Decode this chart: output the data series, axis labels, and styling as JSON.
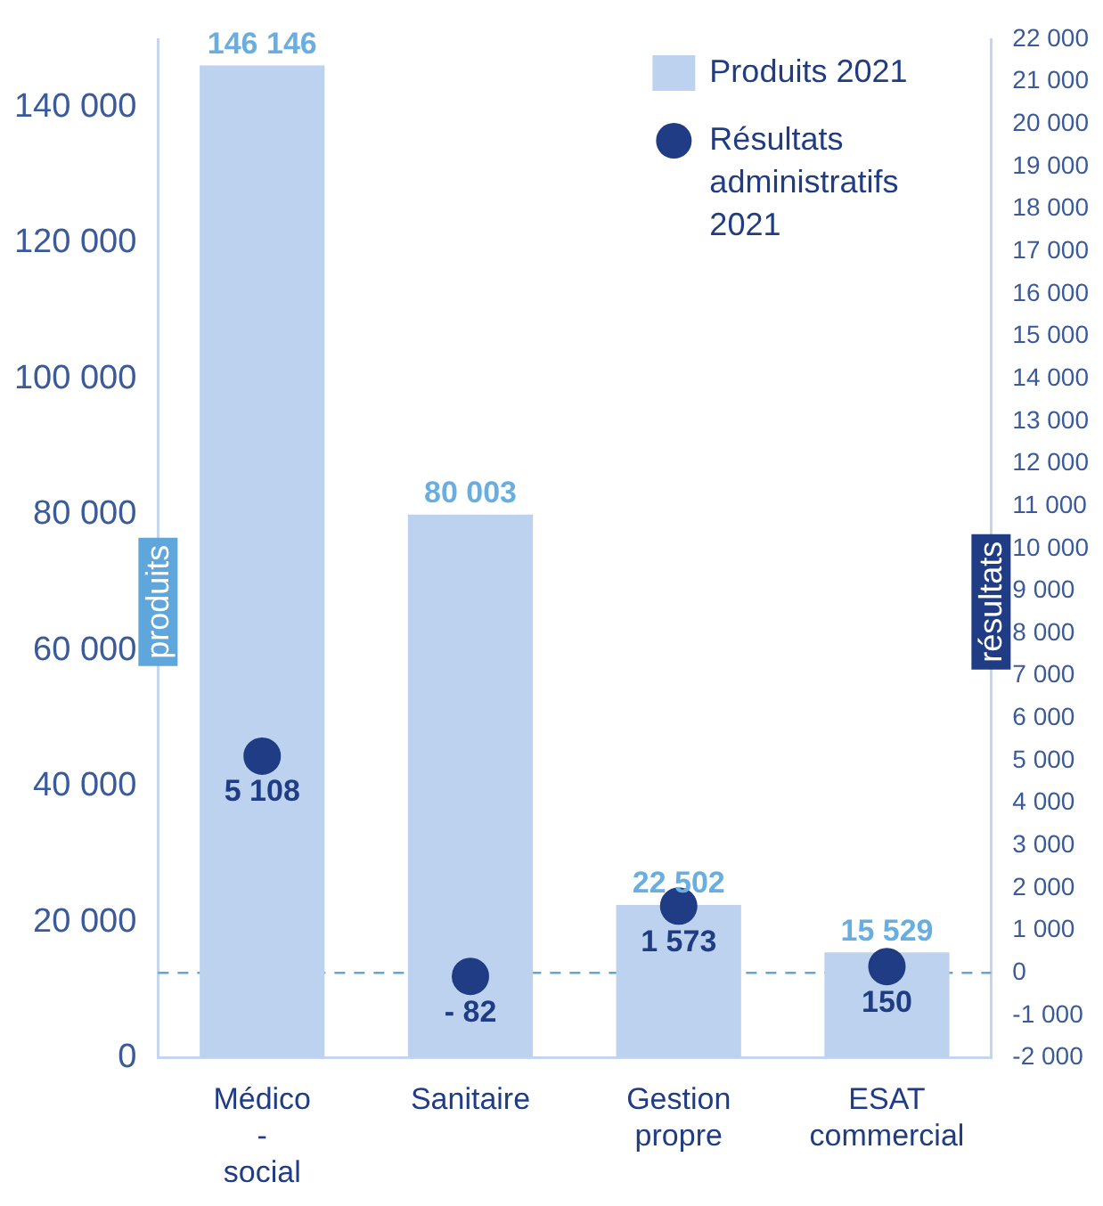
{
  "chart_data": {
    "type": "bar",
    "categories": [
      "Médico - social",
      "Sanitaire",
      "Gestion propre",
      "ESAT commercial"
    ],
    "series": [
      {
        "name": "Produits 2021",
        "color": "#bcd2ee",
        "values": [
          146146,
          80003,
          22502,
          15529
        ],
        "value_labels": [
          "146 146",
          "80 003",
          "22 502",
          "15 529"
        ]
      },
      {
        "name": "Résultats administratifs 2021",
        "type": "scatter",
        "axis": "y2",
        "color": "#1f3c84",
        "values": [
          5108,
          -82,
          1573,
          150
        ],
        "value_labels": [
          "5 108",
          "- 82",
          "1 573",
          "150"
        ]
      }
    ],
    "ylabel": "produits",
    "y2label": "résultats",
    "ylim": [
      0,
      150000
    ],
    "yticks": [
      0,
      {
        "value": 20000,
        "label": "20 000"
      },
      {
        "value": 40000,
        "label": "40 000"
      },
      {
        "value": 60000,
        "label": "60 000"
      },
      {
        "value": 80000,
        "label": "80 000"
      },
      {
        "value": 100000,
        "label": "100 000"
      },
      {
        "value": 120000,
        "label": "120 000"
      },
      {
        "value": 140000,
        "label": "140 000"
      }
    ],
    "y2lim": [
      -2000,
      22000
    ],
    "y2ticks": [
      {
        "value": -2000,
        "label": "-2 000"
      },
      {
        "value": -1000,
        "label": "-1 000"
      },
      0,
      {
        "value": 1000,
        "label": "1 000"
      },
      {
        "value": 2000,
        "label": "2 000"
      },
      {
        "value": 3000,
        "label": "3 000"
      },
      {
        "value": 4000,
        "label": "4 000"
      },
      {
        "value": 5000,
        "label": "5 000"
      },
      {
        "value": 6000,
        "label": "6 000"
      },
      {
        "value": 7000,
        "label": "7 000"
      },
      {
        "value": 8000,
        "label": "8 000"
      },
      {
        "value": 9000,
        "label": "9 000"
      },
      {
        "value": 10000,
        "label": "10 000"
      },
      {
        "value": 11000,
        "label": "11 000"
      },
      {
        "value": 12000,
        "label": "12 000"
      },
      {
        "value": 13000,
        "label": "13 000"
      },
      {
        "value": 14000,
        "label": "14 000"
      },
      {
        "value": 15000,
        "label": "15 000"
      },
      {
        "value": 16000,
        "label": "16 000"
      },
      {
        "value": 17000,
        "label": "17 000"
      },
      {
        "value": 18000,
        "label": "18 000"
      },
      {
        "value": 19000,
        "label": "19 000"
      },
      {
        "value": 20000,
        "label": "20 000"
      },
      {
        "value": 21000,
        "label": "21 000"
      },
      {
        "value": 22000,
        "label": "22 000"
      }
    ],
    "ref_lines": [
      {
        "axis": "y2",
        "value": 0,
        "color": "#5ea6dc",
        "line_style": "dashed"
      }
    ],
    "legend": "top right",
    "marker": "circle"
  }
}
